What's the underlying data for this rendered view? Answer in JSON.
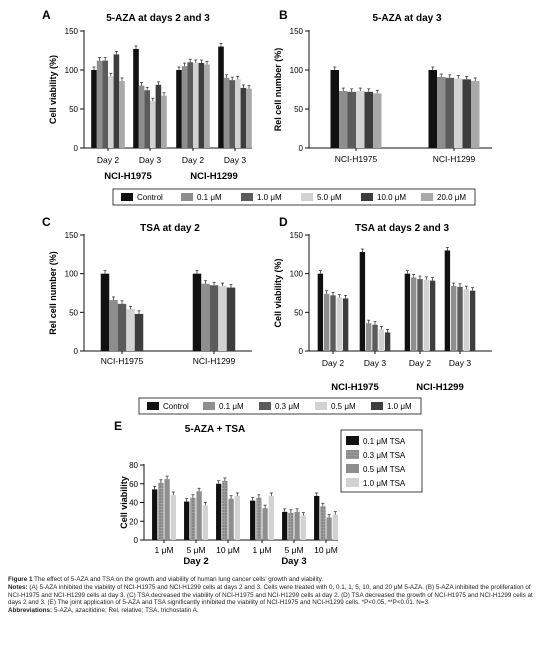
{
  "colors": {
    "c0": "#111111",
    "c1": "#8e8e8e",
    "c2": "#5b5b5b",
    "c3": "#d2d2d2",
    "c4": "#3d3d3d",
    "c5": "#a9a9a9",
    "pattern_grey": "#7a7a7a"
  },
  "legends": {
    "aza": [
      "Control",
      "0.1 μM",
      "1.0 μM",
      "5.0 μM",
      "10.0 μM",
      "20.0 μM"
    ],
    "tsa": [
      "Control",
      "0.1 μM",
      "0.3 μM",
      "0.5 μM",
      "1.0 μM"
    ],
    "combo": [
      "0.1 μM TSA",
      "0.3 μM TSA",
      "0.5 μM TSA",
      "1.0 μM TSA"
    ]
  },
  "chart_data": [
    {
      "panel": "A",
      "type": "bar",
      "title": "5-AZA at days 2 and 3",
      "ylabel": "Cell viability (%)",
      "ylim": [
        0,
        150
      ],
      "yticks": [
        0,
        50,
        100,
        150
      ],
      "groups": [
        "Day 2",
        "Day 3",
        "Day 2",
        "Day 3"
      ],
      "group_labels": [
        "NCI-H1975",
        "NCI-H1299"
      ],
      "series": [
        {
          "name": "Control",
          "values": [
            100,
            127,
            100,
            130
          ]
        },
        {
          "name": "0.1 μM",
          "values": [
            112,
            80,
            105,
            90
          ]
        },
        {
          "name": "1.0 μM",
          "values": [
            112,
            74,
            110,
            87
          ]
        },
        {
          "name": "5.0 μM",
          "values": [
            92,
            60,
            109,
            88
          ]
        },
        {
          "name": "10.0 μM",
          "values": [
            120,
            81,
            109,
            77
          ]
        },
        {
          "name": "20.0 μM",
          "values": [
            86,
            67,
            107,
            76
          ]
        }
      ]
    },
    {
      "panel": "B",
      "type": "bar",
      "title": "5-AZA at day 3",
      "ylabel": "Rel cell number (%)",
      "ylim": [
        0,
        150
      ],
      "yticks": [
        0,
        50,
        100,
        150
      ],
      "groups": [
        "NCI-H1975",
        "NCI-H1299"
      ],
      "series": [
        {
          "name": "Control",
          "values": [
            100,
            100
          ]
        },
        {
          "name": "0.1 μM",
          "values": [
            73,
            91
          ]
        },
        {
          "name": "1.0 μM",
          "values": [
            72,
            90
          ]
        },
        {
          "name": "5.0 μM",
          "values": [
            73,
            89
          ]
        },
        {
          "name": "10.0 μM",
          "values": [
            72,
            88
          ]
        },
        {
          "name": "20.0 μM",
          "values": [
            70,
            86
          ]
        }
      ]
    },
    {
      "panel": "C",
      "type": "bar",
      "title": "TSA at day 2",
      "ylabel": "Rel cell number (%)",
      "ylim": [
        0,
        150
      ],
      "yticks": [
        0,
        50,
        100,
        150
      ],
      "groups": [
        "NCI-H1975",
        "NCI-H1299"
      ],
      "series": [
        {
          "name": "Control",
          "values": [
            100,
            100
          ]
        },
        {
          "name": "0.1 μM",
          "values": [
            66,
            87
          ]
        },
        {
          "name": "0.3 μM",
          "values": [
            61,
            85
          ]
        },
        {
          "name": "0.5 μM",
          "values": [
            54,
            84
          ]
        },
        {
          "name": "1.0 μM",
          "values": [
            48,
            82
          ]
        }
      ]
    },
    {
      "panel": "D",
      "type": "bar",
      "title": "TSA at days 2 and 3",
      "ylabel": "Cell viability (%)",
      "ylim": [
        0,
        150
      ],
      "yticks": [
        0,
        50,
        100,
        150
      ],
      "groups": [
        "Day 2",
        "Day 3",
        "Day 2",
        "Day 3"
      ],
      "group_labels": [
        "NCI-H1975",
        "NCI-H1299"
      ],
      "series": [
        {
          "name": "Control",
          "values": [
            100,
            128,
            100,
            130
          ]
        },
        {
          "name": "0.1 μM",
          "values": [
            74,
            36,
            95,
            84
          ]
        },
        {
          "name": "0.3 μM",
          "values": [
            72,
            34,
            93,
            83
          ]
        },
        {
          "name": "0.5 μM",
          "values": [
            69,
            28,
            92,
            80
          ]
        },
        {
          "name": "1.0 μM",
          "values": [
            68,
            24,
            91,
            78
          ]
        }
      ]
    },
    {
      "panel": "E",
      "type": "bar",
      "title": "5-AZA + TSA",
      "ylabel": "Cell viability",
      "ylim": [
        0,
        80
      ],
      "yticks": [
        0,
        20,
        40,
        60,
        80
      ],
      "groups": [
        "1 μM",
        "5 μM",
        "10 μM",
        "1 μM",
        "5 μM",
        "10 μM"
      ],
      "group_labels": [
        "Day 2",
        "Day 3"
      ],
      "series": [
        {
          "name": "0.1 μM TSA",
          "values": [
            54,
            41,
            60,
            42,
            30,
            47
          ]
        },
        {
          "name": "0.3 μM TSA",
          "values": [
            61,
            45,
            63,
            45,
            29,
            36
          ]
        },
        {
          "name": "0.5 μM TSA",
          "values": [
            65,
            52,
            44,
            34,
            30,
            24
          ]
        },
        {
          "name": "1.0 μM TSA",
          "values": [
            48,
            37,
            47,
            47,
            26,
            27
          ]
        }
      ]
    }
  ],
  "caption": {
    "figure_label": "Figure 1",
    "figure_text": "The effect of 5-AZA and TSA on the growth and viability of human lung cancer cells’ growth and viability.",
    "notes_label": "Notes:",
    "notes_text": "(A) 5-AZA inhibited the viability of NCI-H1975 and NCI-H1299 cells at days 2 and 3. Cells were treated with 0, 0.1, 1, 5, 10, and 20 μM 5-AZA. (B) 5-AZA inhibited the proliferation of NCI-H1975 and NCI-H1299 cells at day 3. (C) TSA decreased the viability of NCI-H1975 and NCI-H1299 cells at day 2. (D) TSA decreased the growth of NCI-H1975 and NCI-H1299 cells at days 2 and 3. (E) The joint application of 5-AZA and TSA significantly inhibited the viability of NCI-H1975 and NCI-H1299 cells. *P<0.05, **P<0.01. N=3.",
    "abbrev_label": "Abbreviations:",
    "abbrev_text": "5-AZA, azacitidine; Rel, relative; TSA, trichostatin A."
  }
}
